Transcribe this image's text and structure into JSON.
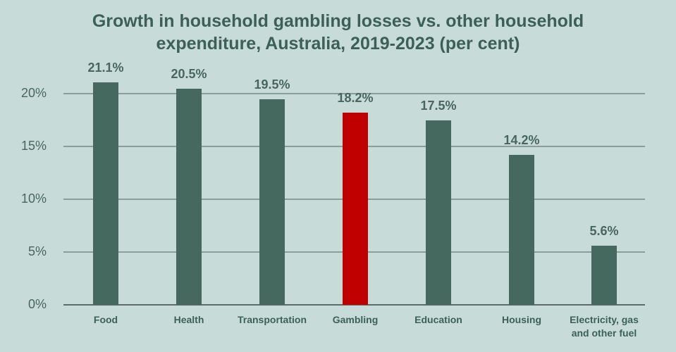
{
  "chart_data": {
    "type": "bar",
    "title": "Growth in household gambling losses vs. other household expenditure, Australia, 2019-2023 (per cent)",
    "title_lines": [
      "Growth in household gambling losses vs. other household",
      "expenditure, Australia, 2019-2023 (per cent)"
    ],
    "categories": [
      "Food",
      "Health",
      "Transportation",
      "Gambling",
      "Education",
      "Housing",
      "Electricity, gas and other fuel"
    ],
    "category_lines": [
      [
        "Food"
      ],
      [
        "Health"
      ],
      [
        "Transportation"
      ],
      [
        "Gambling"
      ],
      [
        "Education"
      ],
      [
        "Housing"
      ],
      [
        "Electricity, gas",
        "and other fuel"
      ]
    ],
    "values": [
      21.1,
      20.5,
      19.5,
      18.2,
      17.5,
      14.2,
      5.6
    ],
    "value_labels": [
      "21.1%",
      "20.5%",
      "19.5%",
      "18.2%",
      "17.5%",
      "14.2%",
      "5.6%"
    ],
    "xlabel": "",
    "ylabel": "",
    "ylim": [
      0,
      20
    ],
    "yticks": [
      "0%",
      "5%",
      "10%",
      "15%",
      "20%"
    ],
    "grid": true,
    "legend": null,
    "colors": {
      "default": "#45695f",
      "highlight": "#c00000",
      "background": "#c7dcd8"
    },
    "highlight_category": "Gambling"
  }
}
